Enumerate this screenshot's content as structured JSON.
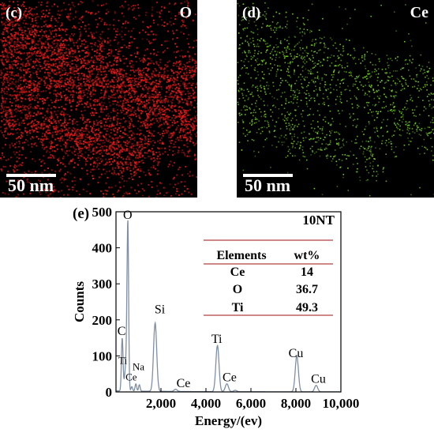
{
  "panels": [
    {
      "label": "(c)",
      "element": "O",
      "color": "#e21a1a",
      "scale": "50 nm"
    },
    {
      "label": "(d)",
      "element": "Ce",
      "color": "#7ddc2a",
      "scale": "50 nm"
    }
  ],
  "chart_data": {
    "type": "line",
    "panel_label": "(e)",
    "sample": "10NT",
    "xlabel": "Energy/(ev)",
    "ylabel": "Counts",
    "xlim": [
      0,
      10000
    ],
    "ylim": [
      0,
      500
    ],
    "xticks": [
      2000,
      4000,
      6000,
      8000,
      10000
    ],
    "xtick_labels": [
      "2,000",
      "4,000",
      "6,000",
      "8,000",
      "10,000"
    ],
    "yticks": [
      0,
      100,
      200,
      300,
      400,
      500
    ],
    "line_color": "#7f8fa6",
    "peaks": [
      {
        "x": 277,
        "y": 148
      },
      {
        "x": 390,
        "y": 32
      },
      {
        "x": 452,
        "y": 68
      },
      {
        "x": 525,
        "y": 470
      },
      {
        "x": 705,
        "y": 12
      },
      {
        "x": 883,
        "y": 20
      },
      {
        "x": 1040,
        "y": 18
      },
      {
        "x": 1740,
        "y": 190
      },
      {
        "x": 2650,
        "y": 6
      },
      {
        "x": 4510,
        "y": 128
      },
      {
        "x": 4930,
        "y": 22
      },
      {
        "x": 5300,
        "y": 4
      },
      {
        "x": 8040,
        "y": 100
      },
      {
        "x": 8900,
        "y": 18
      }
    ],
    "annotations": [
      {
        "text": "O",
        "x": 520,
        "y": 480
      },
      {
        "text": "C",
        "x": 250,
        "y": 158
      },
      {
        "text": "Ti",
        "x": 300,
        "y": 78
      },
      {
        "text": "Na",
        "x": 1000,
        "y": 60
      },
      {
        "text": "Ce",
        "x": 680,
        "y": 32
      },
      {
        "text": "Si",
        "x": 1950,
        "y": 218
      },
      {
        "text": "Ce",
        "x": 3000,
        "y": 13
      },
      {
        "text": "Ti",
        "x": 4480,
        "y": 136
      },
      {
        "text": "Ce",
        "x": 5050,
        "y": 30
      },
      {
        "text": "Cu",
        "x": 8000,
        "y": 97
      },
      {
        "text": "Cu",
        "x": 9000,
        "y": 25
      }
    ],
    "table": {
      "headers": [
        "Elements",
        "wt%"
      ],
      "rows": [
        [
          "Ce",
          "14"
        ],
        [
          "O",
          "36.7"
        ],
        [
          "Ti",
          "49.3"
        ]
      ],
      "line_color": "#b04040"
    }
  }
}
